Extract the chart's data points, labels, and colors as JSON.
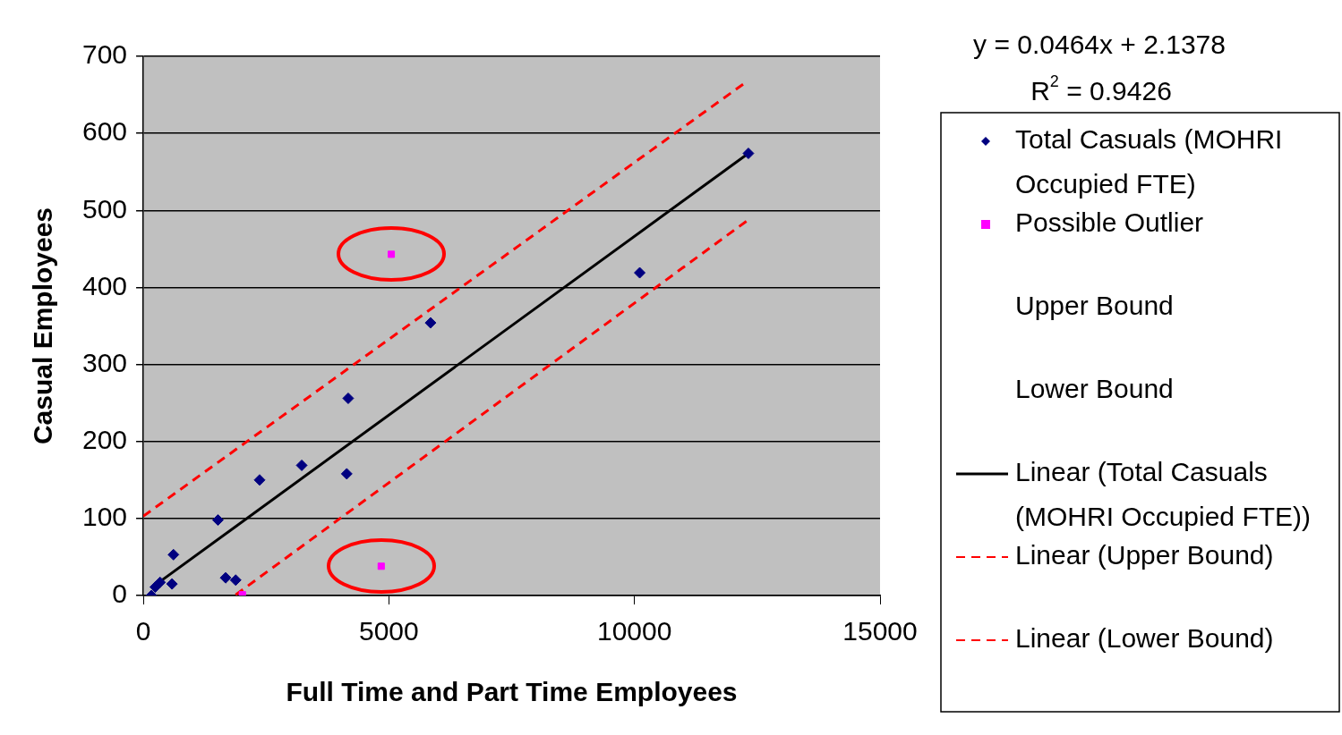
{
  "chart_data": {
    "type": "scatter",
    "xlabel": "Full Time and Part Time Employees",
    "ylabel": "Casual Employees",
    "xlim": [
      0,
      15000
    ],
    "xticks": [
      0,
      5000,
      10000,
      15000
    ],
    "ylim": [
      0,
      700
    ],
    "yticks": [
      0,
      100,
      200,
      300,
      400,
      500,
      600,
      700
    ],
    "grid": "y",
    "legend": "right",
    "annotations": [
      "y = 0.0464x + 2.1378",
      "R$^{2}$ = 0.9426",
      "Upper Bound",
      "Lower Bound"
    ],
    "series": [
      {
        "name": "Total Casuals (MOHRI Occupied FTE)",
        "type": "scatter",
        "marker": "diamond",
        "color": "#000080",
        "x": [
          166,
          244,
          341,
          585,
          614,
          1520,
          1676,
          1881,
          2368,
          3226,
          4142,
          4172,
          5848,
          10107,
          12320
        ],
        "values": [
          0,
          11,
          17,
          15,
          53,
          98,
          23,
          20,
          150,
          169,
          158,
          256,
          354,
          419,
          574
        ]
      },
      {
        "name": "Possible Outlier",
        "type": "scatter",
        "marker": "square",
        "color": "#ff00ff",
        "x": [
          2018,
          5049,
          4844
        ],
        "values": [
          1,
          443,
          38
        ]
      },
      {
        "name": "Linear (Total Casuals (MOHRI Occupied FTE))",
        "type": "line",
        "marker": "none",
        "line_style": "solid",
        "color": "#000000",
        "x": [
          166,
          12320
        ],
        "values": [
          10,
          574
        ]
      },
      {
        "name": "Linear (Upper Bound)",
        "type": "line",
        "marker": "none",
        "line_style": "dashed",
        "color": "#ff0000",
        "x": [
          0,
          12281
        ],
        "values": [
          103,
          667
        ]
      },
      {
        "name": "Linear (Lower Bound)",
        "type": "line",
        "marker": "none",
        "line_style": "dashed",
        "color": "#ff0000",
        "x": [
          1881,
          12281
        ],
        "values": [
          1,
          486
        ]
      }
    ]
  }
}
